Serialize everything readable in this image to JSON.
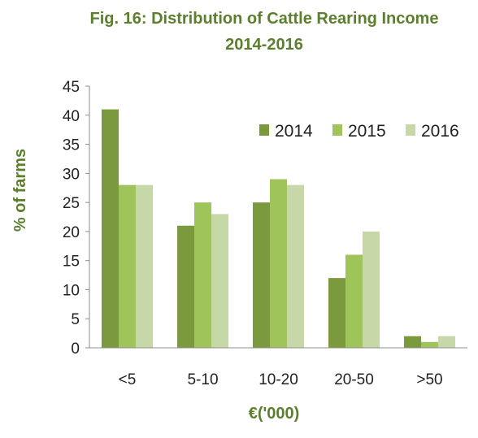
{
  "chart_data": {
    "type": "bar",
    "title": "Fig. 16: Distribution of Cattle Rearing Income",
    "subtitle": "2014-2016",
    "xlabel": "€('000)",
    "ylabel": "% of farms",
    "categories": [
      "<5",
      "5-10",
      "10-20",
      "20-50",
      ">50"
    ],
    "series": [
      {
        "name": "2014",
        "values": [
          41,
          21,
          25,
          12,
          2
        ],
        "color": "#7b9a3e"
      },
      {
        "name": "2015",
        "values": [
          28,
          25,
          29,
          16,
          1
        ],
        "color": "#9fc45a"
      },
      {
        "name": "2016",
        "values": [
          28,
          23,
          28,
          20,
          2
        ],
        "color": "#c7d8a8"
      }
    ],
    "ylim": [
      0,
      45
    ],
    "yticks": [
      0,
      5,
      10,
      15,
      20,
      25,
      30,
      35,
      40,
      45
    ],
    "grid": false,
    "legend": "top-right"
  }
}
